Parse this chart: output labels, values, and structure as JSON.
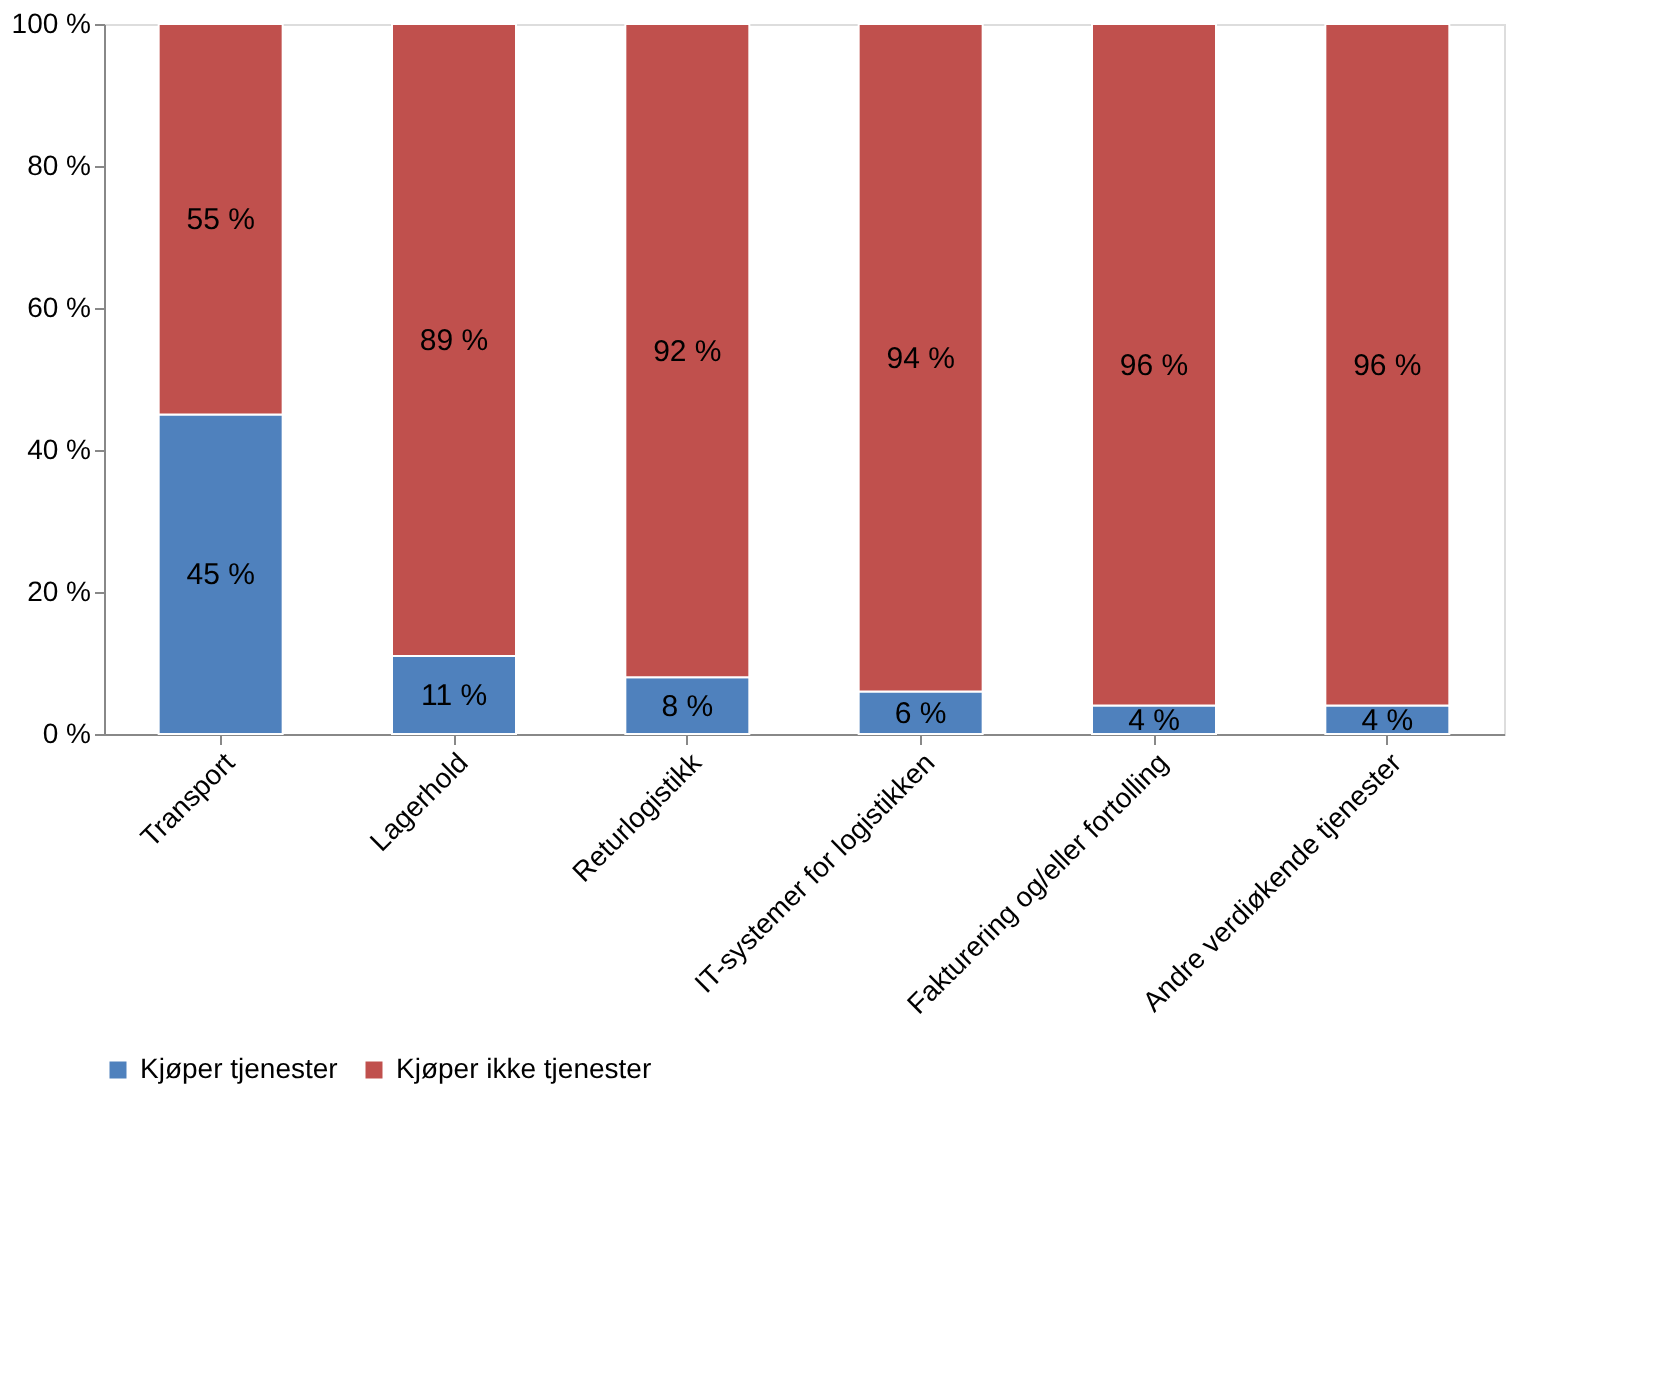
{
  "chart_data": {
    "type": "bar",
    "stacked": true,
    "categories": [
      "Transport",
      "Lagerhold",
      "Returlogistikk",
      "IT-systemer for logistikken",
      "Fakturering og/eller fortolling",
      "Andre verdiøkende tjenester"
    ],
    "series": [
      {
        "name": "Kjøper tjenester",
        "color": "#4f81bd",
        "values": [
          45,
          11,
          8,
          6,
          4,
          4
        ],
        "value_labels": [
          "45 %",
          "11 %",
          "8 %",
          "6 %",
          "4 %",
          "4 %"
        ]
      },
      {
        "name": "Kjøper ikke tjenester",
        "color": "#c0504d",
        "values": [
          55,
          89,
          92,
          94,
          96,
          96
        ],
        "value_labels": [
          "55 %",
          "89 %",
          "92 %",
          "94 %",
          "96 %",
          "96 %"
        ]
      }
    ],
    "ylim": [
      0,
      100
    ],
    "yticks": [
      {
        "value": 0,
        "label": "0 %"
      },
      {
        "value": 20,
        "label": "20 %"
      },
      {
        "value": 40,
        "label": "40 %"
      },
      {
        "value": 60,
        "label": "60 %"
      },
      {
        "value": 80,
        "label": "80 %"
      },
      {
        "value": 100,
        "label": "100 %"
      }
    ],
    "grid": false,
    "legend": "bottom"
  }
}
